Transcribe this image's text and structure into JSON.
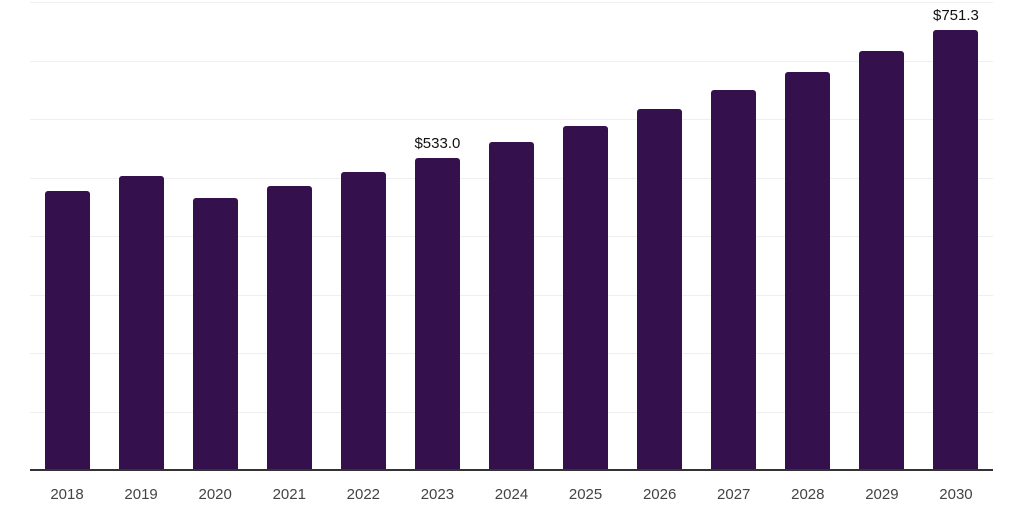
{
  "chart_data": {
    "type": "bar",
    "categories": [
      "2018",
      "2019",
      "2020",
      "2021",
      "2022",
      "2023",
      "2024",
      "2025",
      "2026",
      "2027",
      "2028",
      "2029",
      "2030"
    ],
    "values": [
      477,
      503,
      465,
      486,
      510,
      533.0,
      561,
      588,
      617,
      649,
      681,
      716,
      751.3
    ],
    "data_labels": {
      "2023": "$533.0",
      "2030": "$751.3"
    },
    "title": "",
    "xlabel": "",
    "ylabel": "",
    "ylim": [
      0,
      800
    ],
    "grid_interval": 100,
    "grid_on": true,
    "legend": "none",
    "colors": {
      "bar": "#34114C",
      "gridline": "#efefef",
      "axis_line": "#333333",
      "tick_label": "#444444",
      "data_label": "#111111",
      "background": "#ffffff"
    }
  }
}
